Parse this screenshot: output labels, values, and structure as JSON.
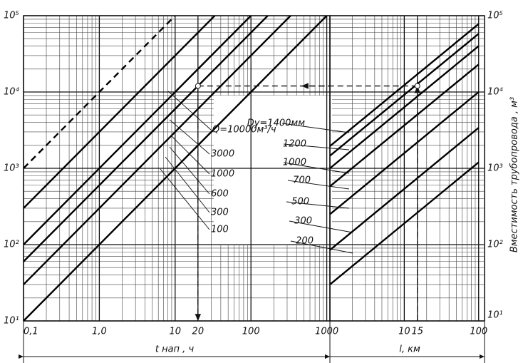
{
  "chart_data": [
    {
      "type": "line",
      "xlog": true,
      "ylog": true,
      "grid": true,
      "xlabel": "t нап , ч",
      "xlim": [
        0.1,
        1100
      ],
      "ylim": [
        10,
        100000
      ],
      "xticks": [
        {
          "value": 0.1,
          "label": "0,1"
        },
        {
          "value": 1,
          "label": "1,0"
        },
        10,
        20,
        100,
        1000
      ],
      "yticks": [
        {
          "value": 10,
          "label": "10¹"
        },
        {
          "value": 100,
          "label": "10²"
        },
        {
          "value": 1000,
          "label": "10³"
        },
        {
          "value": 10000,
          "label": "10⁴"
        },
        {
          "value": 100000,
          "label": "10⁵"
        }
      ],
      "guide": {
        "x": 20,
        "y": 12000
      },
      "series": [
        {
          "name": "Q=10000м³/ч",
          "dashed": true,
          "x": [
            0.1,
            10
          ],
          "values": [
            1000,
            100000
          ]
        },
        {
          "name": "3000",
          "x": [
            0.1,
            33.3
          ],
          "values": [
            300,
            100000
          ]
        },
        {
          "name": "1000",
          "x": [
            0.1,
            100
          ],
          "values": [
            100,
            100000
          ]
        },
        {
          "name": "600",
          "x": [
            0.1,
            166.7
          ],
          "values": [
            60,
            100000
          ]
        },
        {
          "name": "300",
          "x": [
            0.1,
            333.3
          ],
          "values": [
            30,
            100000
          ]
        },
        {
          "name": "100",
          "x": [
            0.1,
            1000
          ],
          "values": [
            10,
            100000
          ]
        }
      ]
    },
    {
      "type": "line",
      "xlog": true,
      "ylog": true,
      "grid": true,
      "xlabel": "l, км",
      "ylabel": "Вместимость трубопровода , м³",
      "xlim": [
        1,
        120
      ],
      "ylim": [
        10,
        100000
      ],
      "xticks": [
        10,
        15,
        100
      ],
      "yticks": [
        {
          "value": 10,
          "label": "10¹"
        },
        {
          "value": 100,
          "label": "10²"
        },
        {
          "value": 1000,
          "label": "10³"
        },
        {
          "value": 10000,
          "label": "10⁴"
        },
        {
          "value": 100000,
          "label": "10⁵"
        }
      ],
      "guide": {
        "x": 15,
        "y": 12000
      },
      "series": [
        {
          "name": "Dу=1400мм",
          "x": [
            1,
            100
          ],
          "values": [
            1950,
            78000
          ]
        },
        {
          "name": "1200",
          "x": [
            1,
            100
          ],
          "values": [
            1460,
            58000
          ]
        },
        {
          "name": "1000",
          "x": [
            1,
            100
          ],
          "values": [
            1000,
            40000
          ]
        },
        {
          "name": "700",
          "x": [
            1,
            100
          ],
          "values": [
            580,
            23000
          ]
        },
        {
          "name": "500",
          "x": [
            1,
            100
          ],
          "values": [
            250,
            10000
          ]
        },
        {
          "name": "300",
          "x": [
            1,
            100
          ],
          "values": [
            85,
            3400
          ]
        },
        {
          "name": "200",
          "x": [
            1,
            100
          ],
          "values": [
            30,
            1200
          ]
        }
      ]
    }
  ]
}
